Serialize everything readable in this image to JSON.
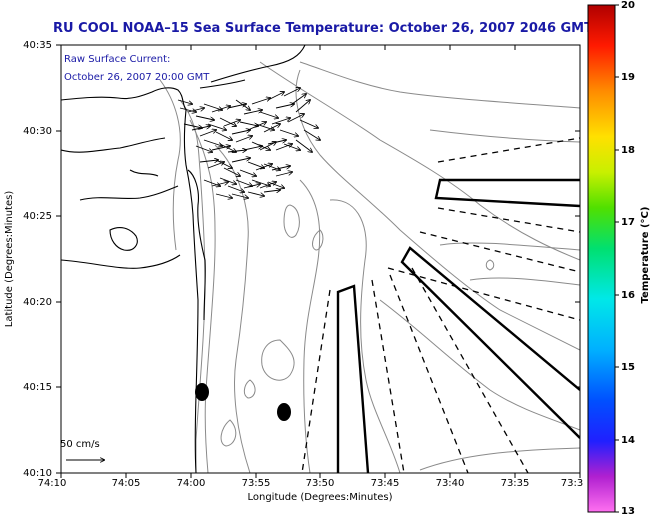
{
  "title": "RU COOL  NOAA–15  Sea Surface Temperature:  October 26, 2007 2046 GMT",
  "annotation": {
    "line1": "Raw Surface Current:",
    "line2": "October 26, 2007 20:00 GMT"
  },
  "scale_label": "50 cm/s",
  "x_axis": {
    "label": "Longitude (Degrees:Minutes)",
    "ticks": [
      "74:10",
      "74:05",
      "74:00",
      "73:55",
      "73:50",
      "73:45",
      "73:40",
      "73:35",
      "73:3"
    ]
  },
  "y_axis": {
    "label": "Latitude (Degrees:Minutes)",
    "ticks": [
      "40:35",
      "40:30",
      "40:25",
      "40:20",
      "40:15",
      "40:10"
    ]
  },
  "colorbar": {
    "label": "Temperature (°C)",
    "ticks": [
      "20",
      "19",
      "18",
      "17",
      "16",
      "15",
      "14",
      "13"
    ],
    "range": [
      13,
      20
    ],
    "colors": [
      "#ff0000",
      "#ff8000",
      "#ffd800",
      "#c8f000",
      "#00e060",
      "#00e8e8",
      "#0090ff",
      "#0000ff",
      "#a000c0",
      "#ff60e0"
    ]
  }
}
